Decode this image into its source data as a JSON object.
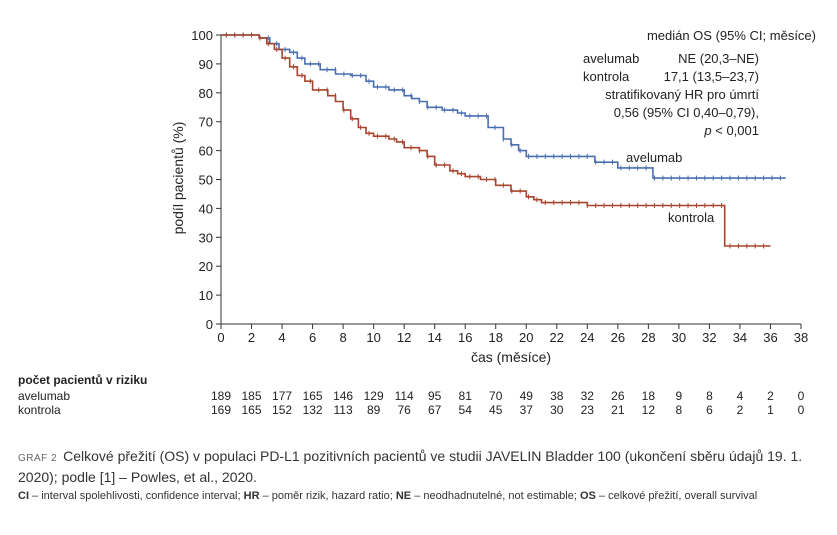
{
  "chart_data": {
    "type": "line",
    "title": "",
    "xlabel": "čas (měsíce)",
    "ylabel": "podíl pacientů (%)",
    "xlim": [
      0,
      38
    ],
    "ylim": [
      0,
      100
    ],
    "xticks": [
      0,
      2,
      4,
      6,
      8,
      10,
      12,
      14,
      16,
      18,
      20,
      22,
      24,
      26,
      28,
      30,
      32,
      34,
      36,
      38
    ],
    "yticks": [
      0,
      10,
      20,
      30,
      40,
      50,
      60,
      70,
      80,
      90,
      100
    ],
    "grid": false,
    "series": [
      {
        "name": "avelumab",
        "color": "#4a6fb0",
        "x": [
          0,
          1.5,
          2.5,
          3.2,
          3.8,
          4.5,
          5,
          5.5,
          6.5,
          7.5,
          8.5,
          9.5,
          10,
          11,
          12,
          12.5,
          13,
          13.5,
          14.5,
          15.5,
          16,
          17,
          17.5,
          18,
          18.5,
          19,
          19.5,
          20,
          20.5,
          21,
          24,
          24.5,
          26,
          28,
          28.3,
          37
        ],
        "y": [
          100,
          100,
          99,
          97,
          95,
          94,
          92,
          90,
          88,
          86.5,
          86,
          84,
          82,
          81,
          79,
          78,
          77,
          75,
          74,
          73,
          72,
          72,
          68,
          68,
          64,
          62,
          60,
          58,
          58,
          58,
          58,
          56,
          54,
          54,
          50.5,
          50.5
        ]
      },
      {
        "name": "kontrola",
        "color": "#a8442c",
        "x": [
          0,
          1.5,
          2.5,
          3,
          3.5,
          4,
          4.5,
          5,
          5.5,
          6,
          7,
          7.5,
          8,
          8.5,
          9,
          9.5,
          10,
          11,
          11.5,
          12,
          13,
          13.5,
          14,
          15,
          15.5,
          16,
          16.5,
          17,
          18,
          18.5,
          19,
          20,
          20.5,
          21,
          22,
          23,
          24,
          26,
          28,
          30,
          32,
          32.8,
          33,
          36
        ],
        "y": [
          100,
          100,
          99,
          97,
          95,
          92,
          89,
          86,
          84,
          81,
          79,
          77,
          74,
          71,
          68,
          66,
          65,
          64,
          63,
          61,
          60,
          58,
          55,
          53,
          52,
          51,
          51,
          50,
          48,
          48,
          46,
          44,
          43,
          42,
          42,
          42,
          41,
          41,
          41,
          41,
          41,
          41,
          27,
          27
        ]
      }
    ],
    "end_labels": [
      "avelumab",
      "kontrola"
    ],
    "annotation": {
      "header": "medián OS (95% CI; měsíce)",
      "rows": [
        {
          "label": "avelumab",
          "value": "NE (20,3–NE)"
        },
        {
          "label": "kontrola",
          "value": "17,1 (13,5–23,7)"
        }
      ],
      "hr_lines": [
        "stratifikovaný HR pro úmrtí",
        "0,56 (95% CI 0,40–0,79),"
      ],
      "p_symbol": "p",
      "p_value": " < 0,001"
    }
  },
  "risk_table": {
    "title": "počet pacientů v riziku",
    "times": [
      0,
      2,
      4,
      6,
      8,
      10,
      12,
      14,
      16,
      18,
      20,
      22,
      24,
      26,
      28,
      30,
      32,
      34,
      36,
      38
    ],
    "rows": [
      {
        "label": "avelumab",
        "values": [
          "189",
          "185",
          "177",
          "165",
          "146",
          "129",
          "114",
          "95",
          "81",
          "70",
          "49",
          "38",
          "32",
          "26",
          "18",
          "9",
          "8",
          "4",
          "2",
          "0"
        ]
      },
      {
        "label": "kontrola",
        "values": [
          "169",
          "165",
          "152",
          "132",
          "113",
          "89",
          "76",
          "67",
          "54",
          "45",
          "37",
          "30",
          "23",
          "21",
          "12",
          "8",
          "6",
          "2",
          "1",
          "0"
        ]
      }
    ]
  },
  "caption": {
    "label": "GRAF 2",
    "text": "Celkové přežití (OS) v populaci PD-L1 pozitivních pacientů ve studii JAVELIN Bladder 100 (ukončení sběru údajů 19. 1. 2020); podle [1] – Powles, et al., 2020."
  },
  "footnote": [
    {
      "abbr": "CI",
      "text": " – interval spolehlivosti, confidence interval; "
    },
    {
      "abbr": "HR",
      "text": " – poměr rizik, hazard ratio; "
    },
    {
      "abbr": "NE",
      "text": " – neodhadnutelné, not estimable; "
    },
    {
      "abbr": "OS",
      "text": " – celkové přežití, overall survival"
    }
  ]
}
